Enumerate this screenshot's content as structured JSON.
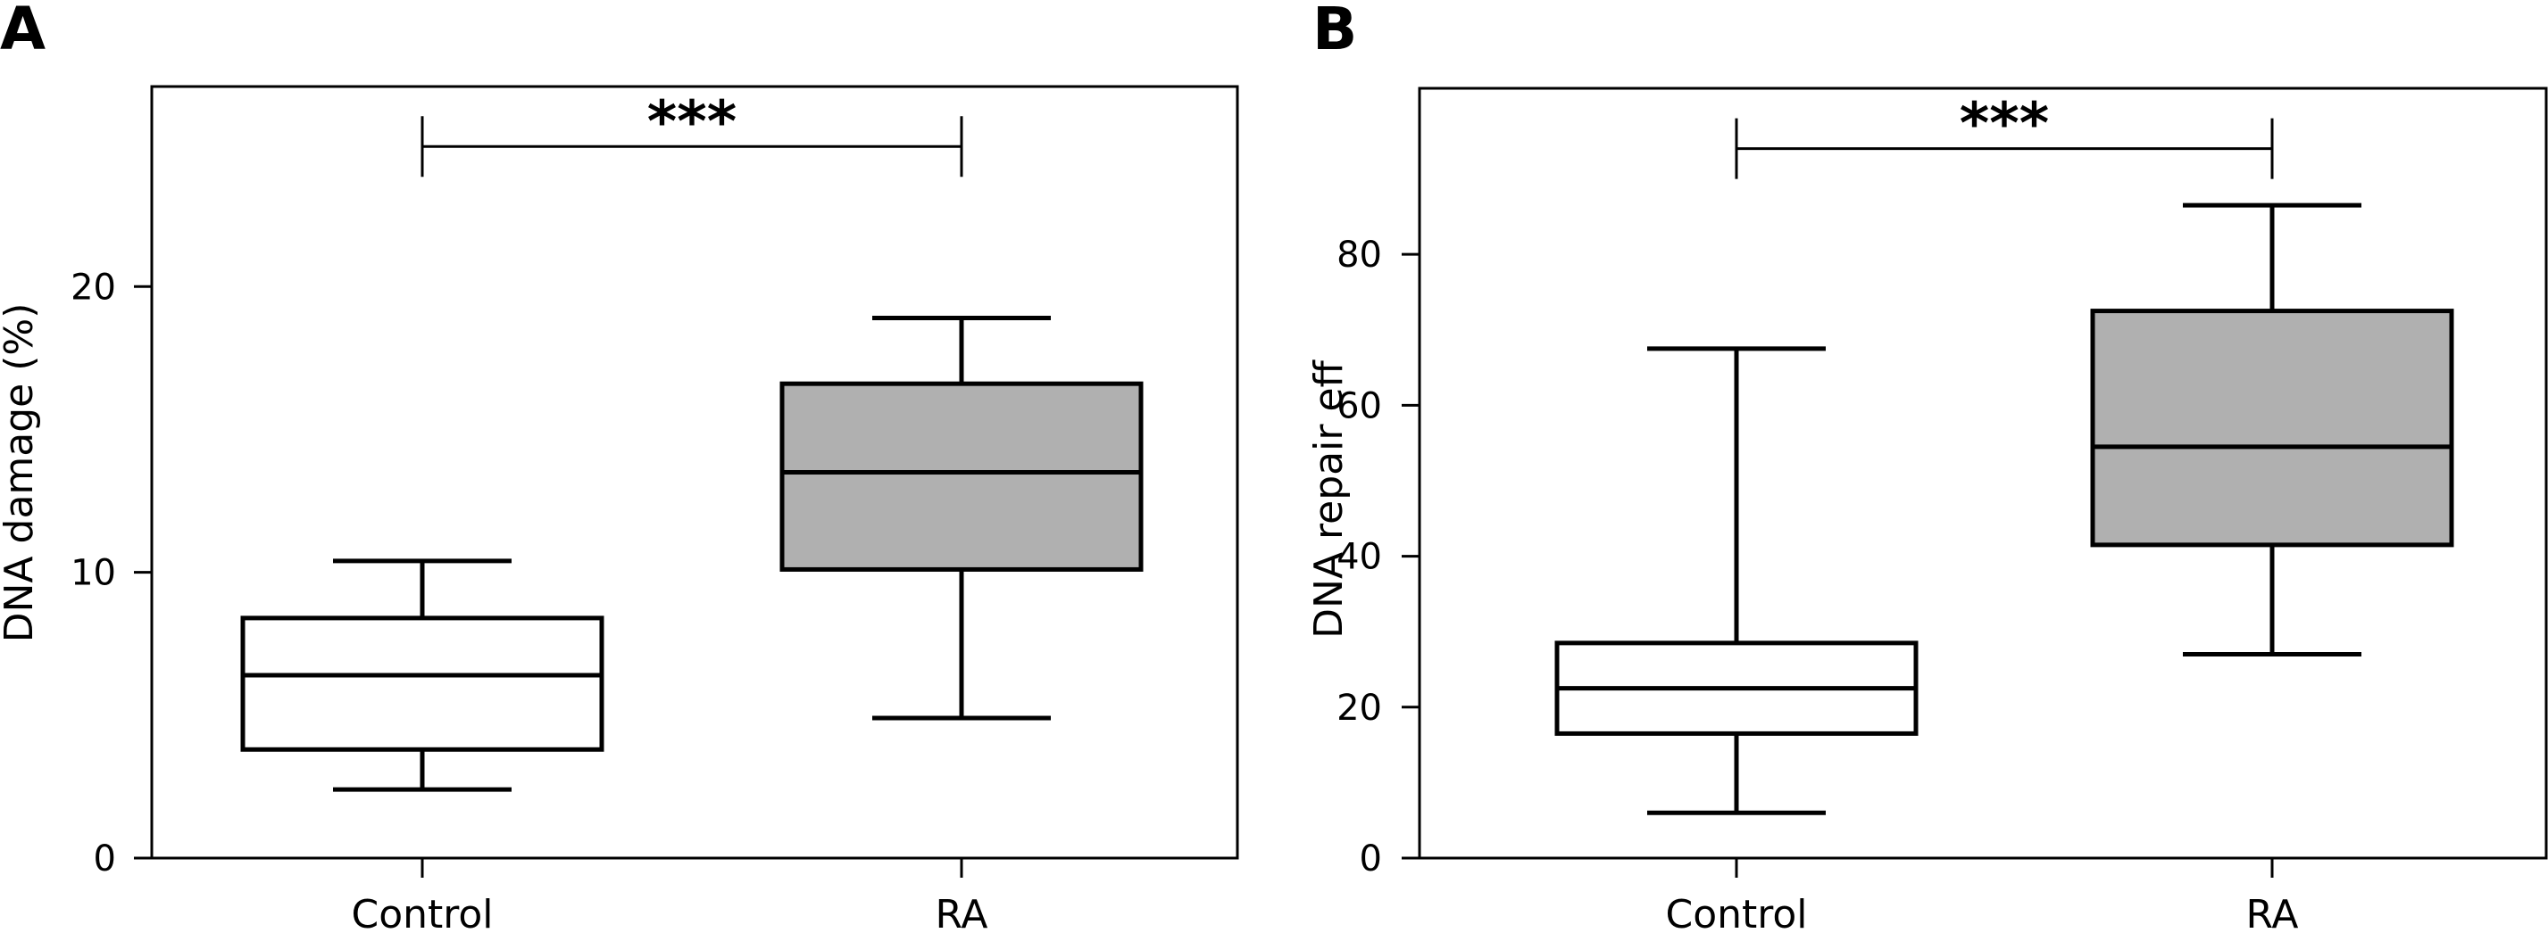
{
  "chart_data": [
    {
      "panel": "A",
      "type": "box",
      "title": "",
      "xlabel": "",
      "ylabel": "DNA damage (%)",
      "ylim": [
        0,
        27
      ],
      "yticks": [
        0,
        10,
        20
      ],
      "categories": [
        "Control",
        "RA"
      ],
      "boxes": [
        {
          "category": "Control",
          "whisker_low": 2.4,
          "q1": 3.8,
          "median": 6.4,
          "q3": 8.4,
          "whisker_high": 10.4,
          "fill": "#ffffff"
        },
        {
          "category": "RA",
          "whisker_low": 4.9,
          "q1": 10.1,
          "median": 13.5,
          "q3": 16.6,
          "whisker_high": 18.9,
          "fill": "#b0b0b0"
        }
      ],
      "significance": {
        "between": [
          "Control",
          "RA"
        ],
        "label": "***",
        "y": 24.9
      }
    },
    {
      "panel": "B",
      "type": "box",
      "title": "",
      "xlabel": "",
      "ylabel": "DNA repair eff",
      "ylim": [
        0,
        102
      ],
      "yticks": [
        0,
        20,
        40,
        60,
        80
      ],
      "categories": [
        "Control",
        "RA"
      ],
      "boxes": [
        {
          "category": "Control",
          "whisker_low": 6,
          "q1": 16.5,
          "median": 22.5,
          "q3": 28.5,
          "whisker_high": 67.5,
          "fill": "#ffffff"
        },
        {
          "category": "RA",
          "whisker_low": 27,
          "q1": 41.5,
          "median": 54.5,
          "q3": 72.5,
          "whisker_high": 86.5,
          "fill": "#b0b0b0"
        }
      ],
      "significance": {
        "between": [
          "Control",
          "RA"
        ],
        "label": "***",
        "y": 94
      }
    }
  ]
}
